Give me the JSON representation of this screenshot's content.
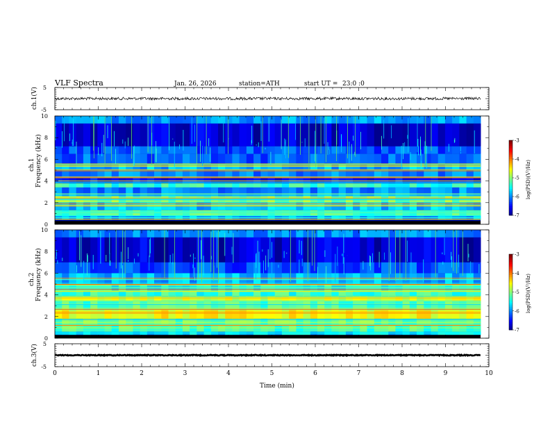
{
  "header": {
    "title": "VLF Spectra",
    "date": "Jan. 26, 2026",
    "station": "station=ATH",
    "start": "start UT =",
    "start_time": "23:0 :0"
  },
  "chart_data": [
    {
      "type": "line",
      "ylabel": "ch.1(V)",
      "ylim": [
        -5,
        5
      ],
      "yticks": [
        "5",
        "-5"
      ],
      "xlim": [
        0,
        10
      ],
      "description_series": "waveform near 0 V"
    },
    {
      "type": "heatmap",
      "ylabel_top": "ch.1",
      "ylabel": "Frequency (kHz)",
      "ylim": [
        0,
        10
      ],
      "yticks": [
        "0",
        "2",
        "4",
        "6",
        "8",
        "10"
      ],
      "xlim": [
        0,
        10
      ],
      "colorbar": {
        "label": "log(PSD)(V²/Hz)",
        "range": [
          -7,
          -3
        ],
        "ticks": [
          "-3",
          "-4",
          "-5",
          "-6",
          "-7"
        ]
      }
    },
    {
      "type": "heatmap",
      "ylabel_top": "ch.2",
      "ylabel": "Frequency (kHz)",
      "ylim": [
        0,
        10
      ],
      "yticks": [
        "0",
        "2",
        "4",
        "6",
        "8",
        "10"
      ],
      "xlim": [
        0,
        10
      ],
      "colorbar": {
        "label": "log(PSD)(V²/Hz)",
        "range": [
          -7,
          -3
        ],
        "ticks": [
          "-3",
          "-4",
          "-5",
          "-6",
          "-7"
        ]
      }
    },
    {
      "type": "line",
      "ylabel": "ch.3(V)",
      "ylim": [
        -5,
        5
      ],
      "yticks": [
        "5",
        "-5"
      ],
      "xlim": [
        0,
        10
      ],
      "xlabel": "Time (min)",
      "xticks": [
        "0",
        "1",
        "2",
        "3",
        "4",
        "5",
        "6",
        "7",
        "8",
        "9",
        "10"
      ]
    }
  ]
}
